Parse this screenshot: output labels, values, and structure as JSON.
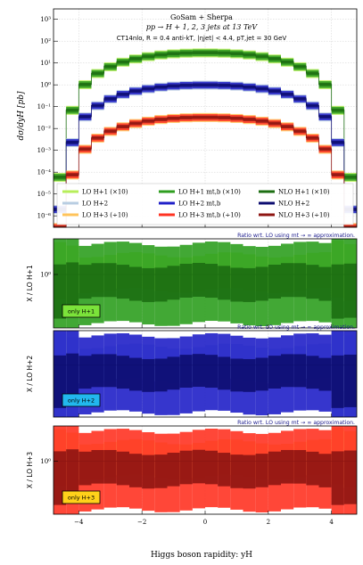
{
  "chart_data": {
    "type": "line",
    "annotation": {
      "line1": "GoSam + Sherpa",
      "line2": "pp → H + 1, 2, 3 jets at 13 TeV",
      "line3": "CT14nlo, R = 0.4 anti-kT, |ηjet| < 4.4, pT,jet = 30 GeV"
    },
    "main": {
      "ylabel": "dσ/dyH [pb]",
      "yscale": "log",
      "ylim": [
        3e-07,
        3000.0
      ],
      "yticks": [
        "10⁻⁶",
        "10⁻⁵",
        "10⁻⁴",
        "10⁻³",
        "10⁻²",
        "10⁻¹",
        "10⁰",
        "10¹",
        "10²",
        "10³"
      ],
      "grid": true,
      "legend_placement": "bottom",
      "peaks": {
        "h1": 30,
        "h2": 1.0,
        "h3": 0.033
      },
      "legend": [
        {
          "label": "LO H+1 (×10)",
          "color": "#b7ee5a",
          "key": "lo1"
        },
        {
          "label": "LO H+2",
          "color": "#b8cde2",
          "key": "lo2"
        },
        {
          "label": "LO H+3 (÷10)",
          "color": "#ffc35a",
          "key": "lo3"
        },
        {
          "label": "LO H+1 mt,b (×10)",
          "color": "#2e9e1f",
          "key": "lomt1"
        },
        {
          "label": "LO H+2 mt,b",
          "color": "#2020c8",
          "key": "lomt2"
        },
        {
          "label": "LO H+3 mt,b (÷10)",
          "color": "#ff3322",
          "key": "lomt3"
        },
        {
          "label": "NLO H+1 (×10)",
          "color": "#1c6e12",
          "key": "nlo1"
        },
        {
          "label": "NLO H+2",
          "color": "#0d0d70",
          "key": "nlo2"
        },
        {
          "label": "NLO H+3 (÷10)",
          "color": "#8e1512",
          "key": "nlo3"
        }
      ]
    },
    "ratio_panels": [
      {
        "ylabel": "X / LO H+1",
        "note": "Ratio wrt. LO using mt → ∞ approximation.",
        "badge": "only H+1",
        "badge_color": "#7be33a",
        "ytick": "10⁰"
      },
      {
        "ylabel": "X / LO H+2",
        "note": "Ratio wrt. LO using mt → ∞ approximation.",
        "badge": "only H+2",
        "badge_color": "#22b8ee",
        "ytick": ""
      },
      {
        "ylabel": "X / LO H+3",
        "note": "Ratio wrt. LO using mt → ∞ approximation.",
        "badge": "only H+3",
        "badge_color": "#ffd11a",
        "ytick": "10⁰"
      }
    ],
    "x": {
      "xlabel": "Higgs boson rapidity:  yH",
      "xlim": [
        -4.8,
        4.8
      ],
      "ticks": [
        -4,
        -2,
        0,
        2,
        4
      ],
      "tick_labels": [
        "−4",
        "−2",
        "0",
        "2",
        "4"
      ]
    }
  }
}
